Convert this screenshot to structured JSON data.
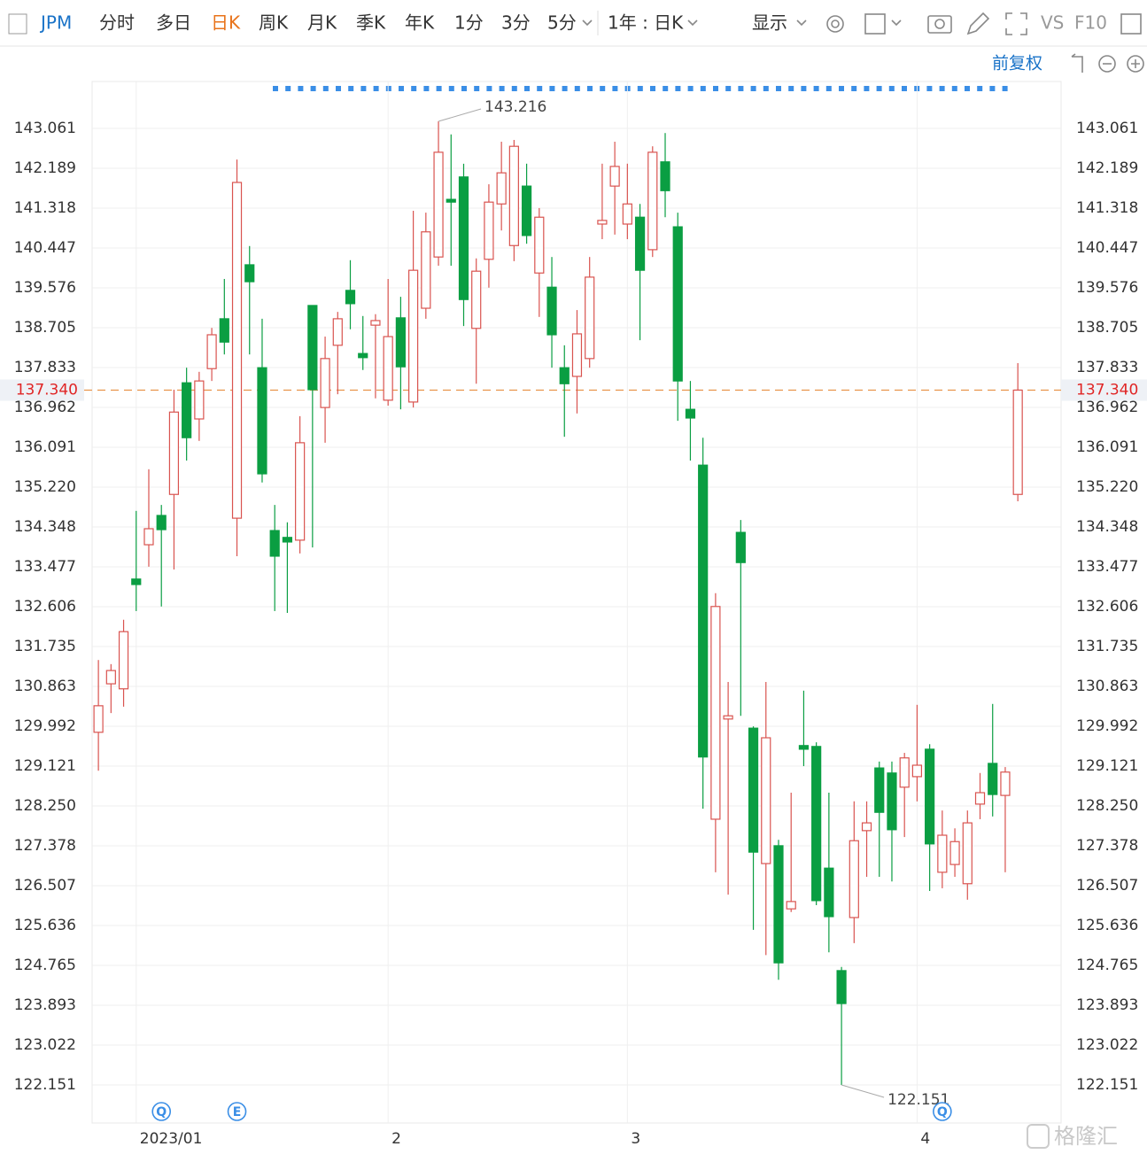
{
  "toolbar": {
    "symbol": "JPM",
    "tabs": [
      "分时",
      "多日",
      "日K",
      "周K",
      "月K",
      "季K",
      "年K",
      "1分",
      "3分",
      "5分"
    ],
    "active_tab": 2,
    "range": "1年 : 日K",
    "display": "显示",
    "vs": "VS",
    "f10": "F10",
    "adjust": "前复权"
  },
  "chart_data": {
    "type": "candlestick",
    "categories": [
      null,
      null,
      null,
      "2023/01",
      null,
      null,
      null,
      null,
      null,
      null,
      null,
      null,
      null,
      null,
      null,
      null,
      null,
      null,
      null,
      null,
      null,
      null,
      null,
      "2",
      null,
      null,
      null,
      null,
      null,
      null,
      null,
      null,
      null,
      null,
      null,
      null,
      null,
      null,
      null,
      null,
      null,
      null,
      "3",
      null,
      null,
      null,
      null,
      null,
      null,
      null,
      null,
      null,
      null,
      null,
      null,
      null,
      null,
      null,
      null,
      null,
      null,
      null,
      null,
      null,
      null,
      "4",
      null,
      null,
      null,
      null,
      null,
      null,
      null,
      null
    ],
    "open": [
      129.86,
      130.92,
      130.81,
      133.21,
      133.96,
      134.6,
      135.06,
      137.5,
      136.71,
      137.81,
      138.9,
      134.54,
      140.08,
      137.83,
      134.27,
      134.12,
      134.06,
      139.19,
      136.96,
      138.32,
      139.52,
      138.14,
      138.76,
      137.12,
      138.92,
      137.08,
      139.13,
      140.25,
      141.51,
      142.0,
      138.69,
      140.2,
      141.41,
      140.5,
      141.8,
      139.9,
      139.59,
      137.83,
      137.64,
      138.03,
      140.97,
      141.8,
      140.97,
      141.12,
      140.41,
      142.33,
      140.91,
      136.92,
      135.7,
      127.96,
      130.15,
      134.23,
      129.95,
      126.99,
      127.38,
      126.0,
      129.57,
      129.55,
      126.89,
      124.65,
      125.81,
      127.71,
      129.08,
      128.97,
      128.66,
      128.89,
      129.49,
      126.8,
      126.97,
      126.55,
      128.29,
      129.18,
      128.48,
      135.06
    ],
    "high": [
      131.44,
      131.35,
      132.32,
      134.7,
      135.61,
      134.83,
      137.35,
      137.83,
      137.74,
      138.7,
      139.77,
      142.38,
      140.49,
      138.9,
      134.83,
      134.45,
      136.77,
      139.19,
      138.51,
      139.05,
      140.18,
      138.96,
      139.0,
      139.77,
      139.38,
      141.26,
      141.22,
      143.216,
      142.93,
      142.29,
      140.22,
      141.84,
      142.77,
      142.81,
      142.29,
      141.32,
      140.25,
      138.32,
      139.09,
      140.25,
      142.29,
      142.77,
      142.29,
      141.41,
      142.67,
      142.96,
      141.22,
      137.54,
      136.3,
      132.9,
      130.96,
      134.5,
      129.99,
      130.96,
      127.51,
      128.54,
      130.77,
      129.64,
      128.54,
      124.73,
      128.35,
      128.35,
      129.22,
      129.22,
      129.41,
      130.46,
      129.6,
      128.15,
      127.76,
      128.15,
      128.97,
      130.48,
      129.1,
      137.93
    ],
    "low": [
      129.02,
      130.28,
      130.42,
      132.51,
      133.48,
      132.61,
      133.42,
      135.8,
      136.23,
      137.54,
      138.12,
      133.71,
      138.12,
      135.32,
      132.51,
      132.47,
      133.77,
      133.9,
      136.19,
      137.25,
      138.67,
      137.78,
      137.16,
      137.0,
      136.92,
      136.96,
      138.9,
      140.06,
      140.06,
      138.74,
      137.48,
      139.58,
      140.83,
      140.16,
      140.54,
      138.94,
      137.83,
      136.32,
      136.83,
      137.83,
      140.64,
      140.74,
      140.64,
      138.43,
      140.25,
      141.12,
      136.67,
      135.8,
      128.19,
      126.8,
      126.31,
      130.22,
      125.54,
      124.99,
      124.45,
      125.93,
      129.12,
      126.08,
      125.05,
      122.151,
      125.25,
      126.7,
      126.7,
      126.6,
      127.57,
      128.35,
      126.39,
      126.45,
      126.7,
      126.2,
      127.96,
      128.02,
      126.8,
      134.91
    ],
    "close": [
      130.44,
      131.21,
      132.06,
      133.09,
      134.31,
      134.29,
      136.86,
      136.3,
      137.54,
      138.55,
      138.39,
      141.88,
      139.71,
      135.51,
      133.71,
      134.02,
      136.19,
      137.35,
      138.03,
      138.9,
      139.23,
      138.05,
      138.86,
      138.51,
      137.85,
      139.96,
      140.8,
      142.54,
      141.45,
      139.32,
      139.94,
      141.45,
      142.09,
      142.67,
      140.72,
      141.12,
      138.55,
      137.48,
      138.57,
      139.81,
      141.05,
      142.23,
      141.41,
      139.96,
      142.54,
      141.7,
      137.54,
      136.73,
      129.32,
      132.61,
      130.22,
      133.57,
      127.24,
      129.74,
      124.82,
      126.16,
      129.49,
      126.18,
      125.83,
      123.93,
      127.49,
      127.88,
      128.11,
      127.73,
      129.3,
      129.14,
      127.42,
      127.61,
      127.47,
      127.88,
      128.54,
      128.5,
      128.99,
      137.34
    ],
    "up_color": "#d9534f",
    "down_color": "#0a9e42",
    "ylim": [
      121.318,
      144.087
    ],
    "yticks": [
      143.061,
      142.189,
      141.318,
      140.447,
      139.576,
      138.705,
      137.833,
      136.962,
      136.091,
      {
        "value": 135.22,
        "label": "135.220"
      },
      134.348,
      133.477,
      132.606,
      131.735,
      130.863,
      129.992,
      129.121,
      {
        "value": 128.25,
        "label": "128.250"
      },
      127.378,
      126.507,
      125.636,
      124.765,
      123.893,
      123.022,
      122.151
    ],
    "grid": true,
    "last_price": {
      "value": 137.34,
      "label": "137.340",
      "color": "#e8944a"
    },
    "events": [
      {
        "label": "Q",
        "index": 5
      },
      {
        "label": "E",
        "index": 11
      },
      {
        "label": "Q",
        "index": 67
      }
    ],
    "watermark": "格隆汇"
  }
}
